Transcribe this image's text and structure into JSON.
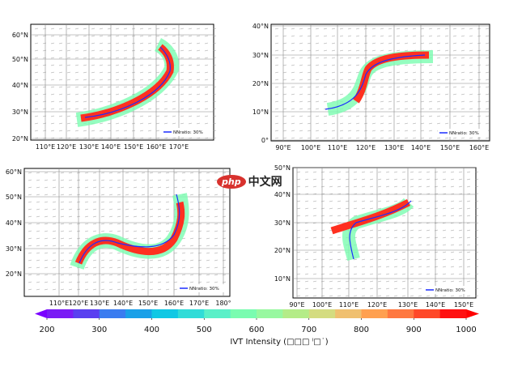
{
  "panels": [
    {
      "id": "a",
      "lat_ticks": [
        "60°N",
        "50°N",
        "40°N",
        "30°N",
        "20°N"
      ],
      "lon_ticks": [
        "110°E",
        "120°E",
        "130°E",
        "140°E",
        "150°E",
        "160°E",
        "170°E"
      ],
      "legend": "NNratio: 30%"
    },
    {
      "id": "b",
      "lat_ticks": [
        "40°N",
        "30°N",
        "20°N",
        "10°N",
        "0°"
      ],
      "lon_ticks": [
        "90°E",
        "100°E",
        "110°E",
        "120°E",
        "130°E",
        "140°E",
        "150°E",
        "160°E"
      ],
      "legend": "NNratio: 30%"
    },
    {
      "id": "c",
      "lat_ticks": [
        "60°N",
        "50°N",
        "40°N",
        "30°N",
        "20°N"
      ],
      "lon_ticks": [
        "110°E",
        "120°E",
        "130°E",
        "140°E",
        "150°E",
        "160°E",
        "170°E",
        "180°"
      ],
      "legend": "NNratio: 30%"
    },
    {
      "id": "d",
      "lat_ticks": [
        "50°N",
        "40°N",
        "30°N",
        "20°N",
        "10°N"
      ],
      "lon_ticks": [
        "90°E",
        "100°E",
        "110°E",
        "120°E",
        "130°E",
        "140°E",
        "150°E"
      ],
      "legend": "NNratio: 30%"
    }
  ],
  "colorbar": {
    "label": "IVT Intensity (□□□ ˡ□˙)",
    "ticks": [
      "200",
      "300",
      "400",
      "500",
      "600",
      "700",
      "800",
      "900",
      "1000"
    ],
    "colors": [
      "#7a1cf5",
      "#5a40f0",
      "#3a7cf0",
      "#1aa0e8",
      "#10c8e4",
      "#30dcd8",
      "#5af0c8",
      "#7afcb0",
      "#98f8a0",
      "#b4ec88",
      "#d4dc80",
      "#f0c070",
      "#ffa050",
      "#ff7840",
      "#ff4828",
      "#ff1010"
    ],
    "extend_low": "#7a00ff",
    "extend_high": "#ff0000"
  },
  "watermark": {
    "logo": "php",
    "text": "中文网"
  }
}
